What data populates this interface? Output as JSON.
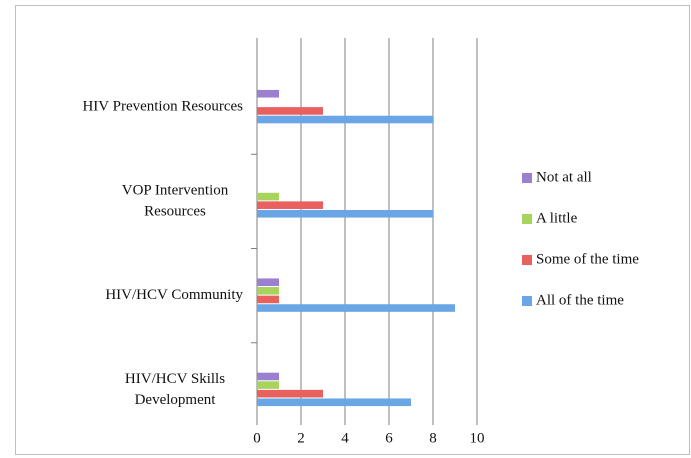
{
  "chart_data": {
    "type": "hbar",
    "categories": [
      "HIV Prevention Resources",
      "VOP Intervention Resources",
      "HIV/HCV Community",
      "HIV/HCV Skills Development"
    ],
    "series": [
      {
        "name": "Not at all",
        "color": "#9a80cf",
        "values": [
          1,
          0,
          1,
          1
        ]
      },
      {
        "name": "A little",
        "color": "#a6d45c",
        "values": [
          0,
          1,
          1,
          1
        ]
      },
      {
        "name": "Some of the time",
        "color": "#e8615e",
        "values": [
          3,
          3,
          1,
          3
        ]
      },
      {
        "name": "All of the time",
        "color": "#6aa6e6",
        "values": [
          8,
          8,
          9,
          7
        ]
      }
    ],
    "xlim": [
      0,
      10
    ],
    "xticks": [
      0,
      2,
      4,
      6,
      8,
      10
    ],
    "grid": true,
    "legend": "right"
  }
}
